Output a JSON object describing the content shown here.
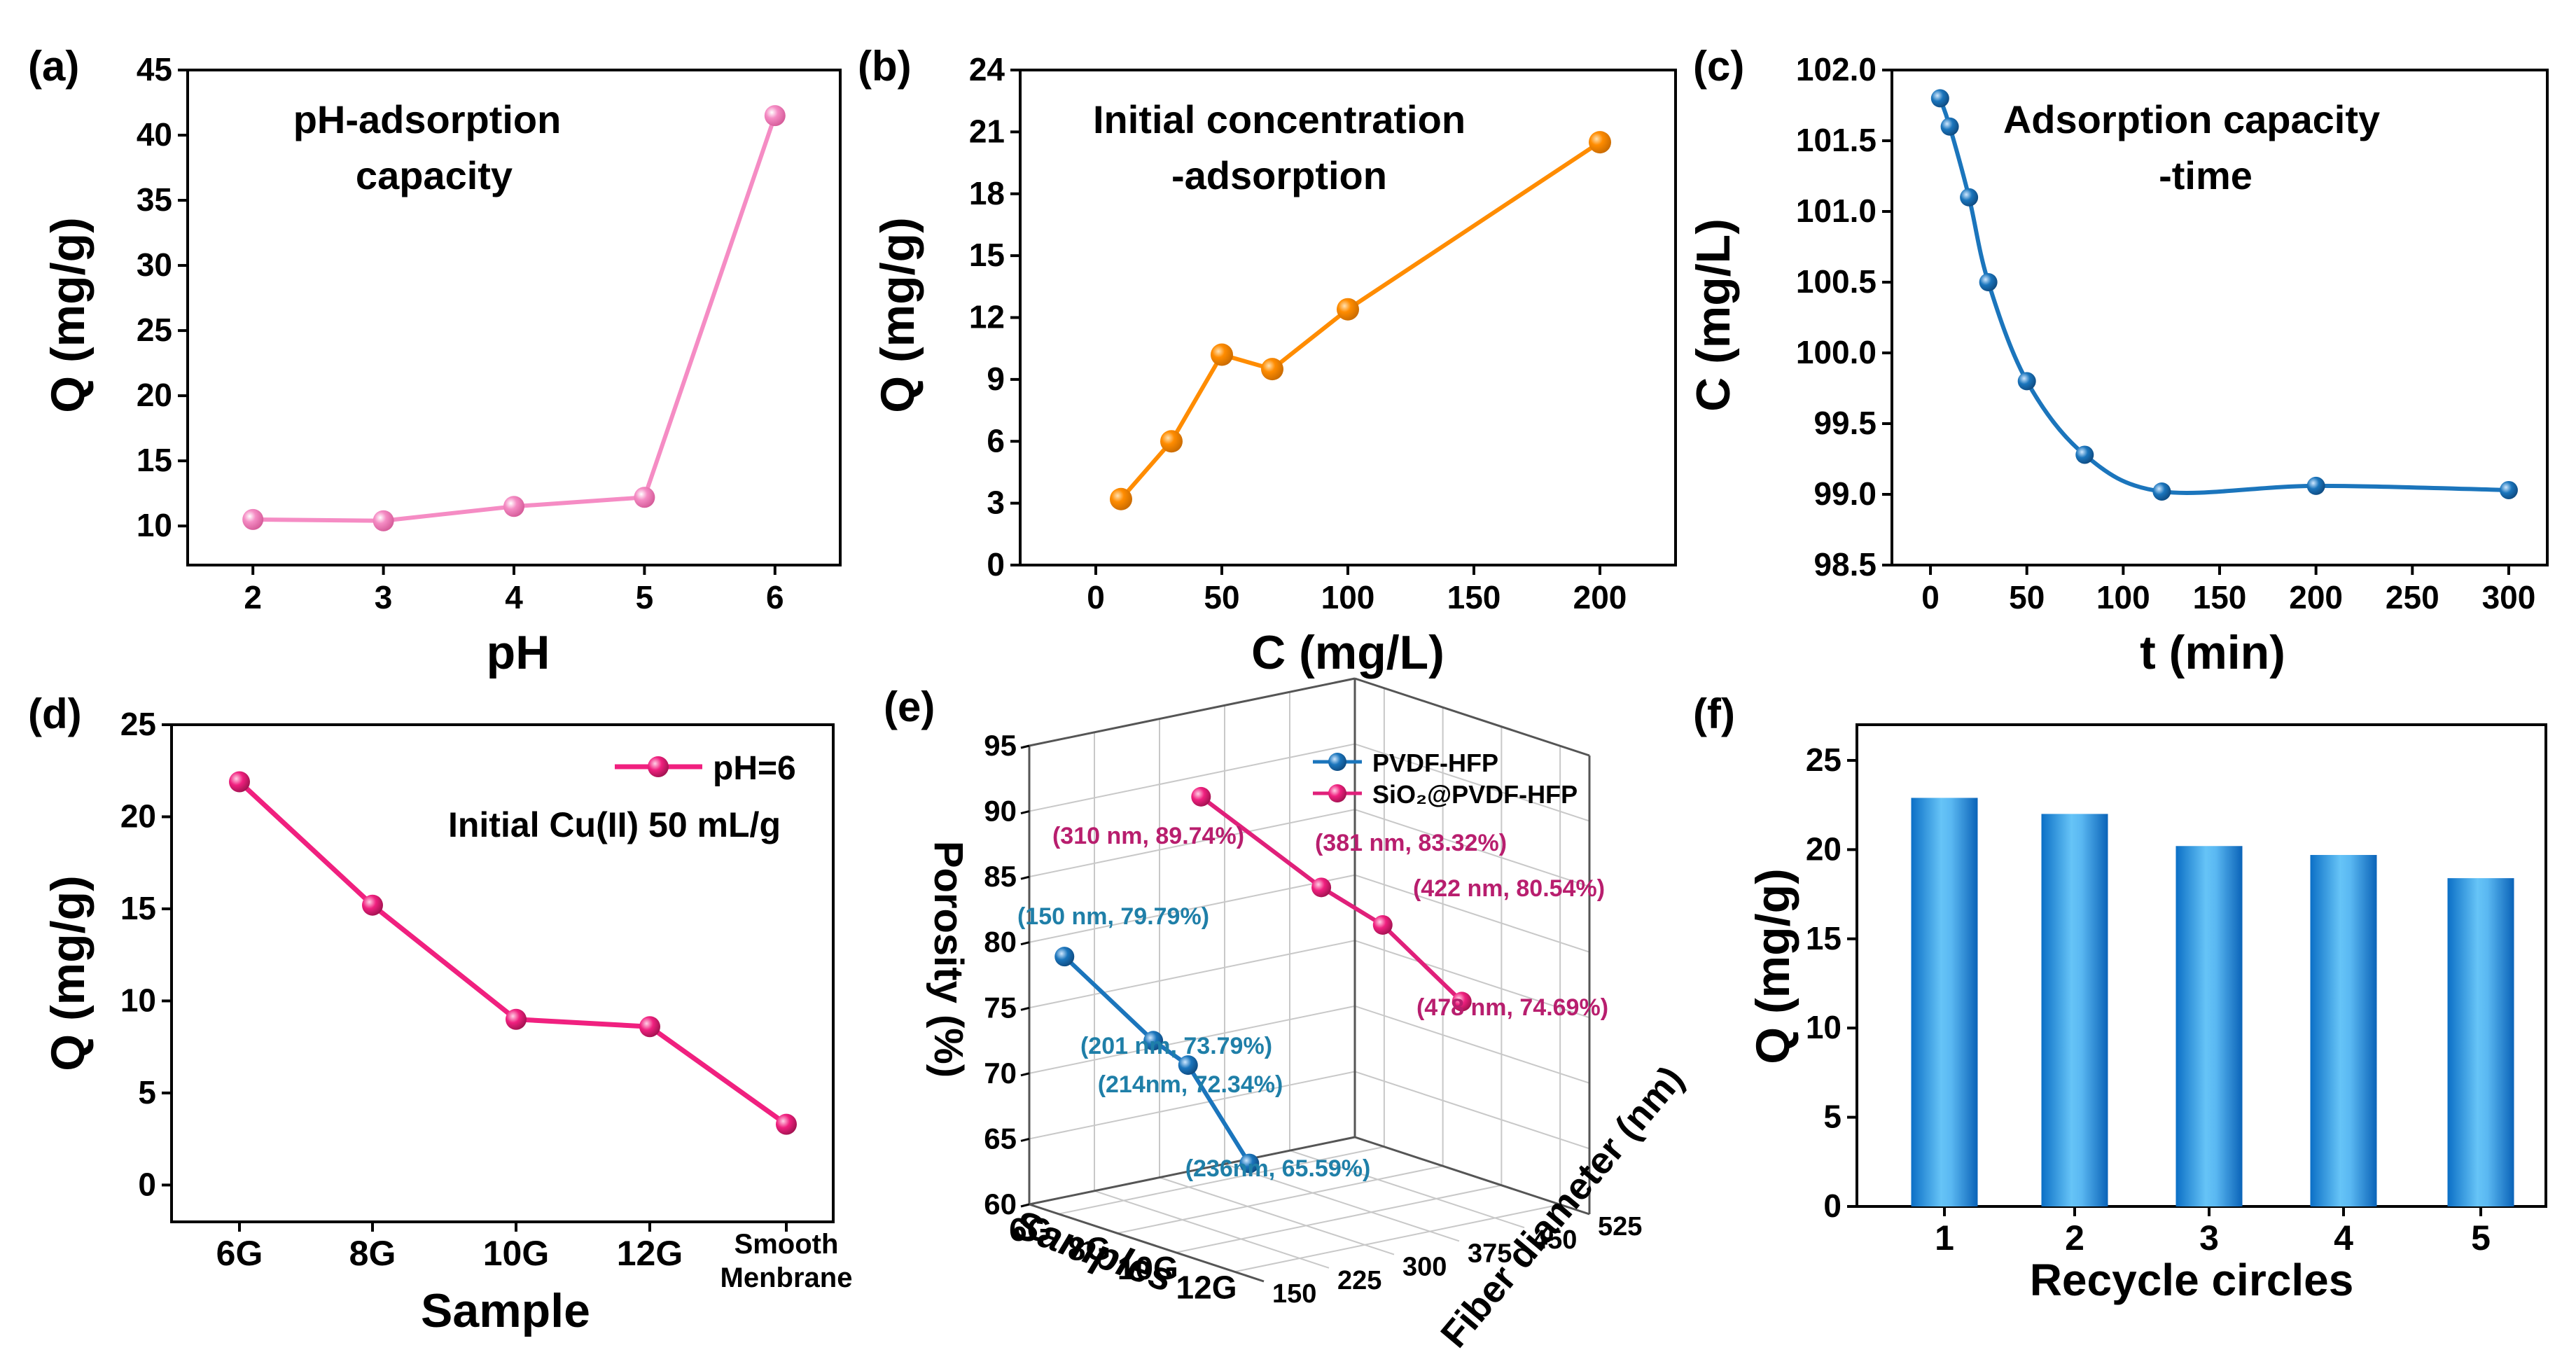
{
  "chart_data": [
    {
      "id": "a",
      "panel_label": "(a)",
      "type": "line",
      "annotation": [
        "pH-adsorption",
        "capacity"
      ],
      "xlabel": "pH",
      "ylabel": "Q (mg/g)",
      "xlim": [
        1.5,
        6.5
      ],
      "ylim": [
        7,
        45
      ],
      "xticks": [
        2,
        3,
        4,
        5,
        6
      ],
      "yticks": [
        10,
        15,
        20,
        25,
        30,
        35,
        40,
        45
      ],
      "x": [
        2,
        3,
        4,
        5,
        6
      ],
      "y": [
        10.5,
        10.4,
        11.5,
        12.2,
        41.5
      ],
      "color": "#f58cc4"
    },
    {
      "id": "b",
      "panel_label": "(b)",
      "type": "line",
      "annotation": [
        "Initial concentration",
        "-adsorption"
      ],
      "xlabel": "C (mg/L)",
      "ylabel": "Q (mg/g)",
      "xlim": [
        -30,
        230
      ],
      "ylim": [
        0,
        24
      ],
      "xticks": [
        0,
        50,
        100,
        150,
        200
      ],
      "yticks": [
        0,
        3,
        6,
        9,
        12,
        15,
        18,
        21,
        24
      ],
      "x": [
        10,
        30,
        50,
        70,
        100,
        200
      ],
      "y": [
        3.2,
        6.0,
        10.2,
        9.5,
        12.4,
        20.5
      ],
      "color": "#ff8c00"
    },
    {
      "id": "c",
      "panel_label": "(c)",
      "type": "line",
      "annotation": [
        "Adsorption capacity",
        "-time"
      ],
      "xlabel": "t (min)",
      "ylabel": "C (mg/L)",
      "xlim": [
        -20,
        320
      ],
      "ylim": [
        98.5,
        102.0
      ],
      "xticks": [
        0,
        50,
        100,
        150,
        200,
        250,
        300
      ],
      "yticks": [
        "98.5",
        "99.0",
        "99.5",
        "100.0",
        "100.5",
        "101.0",
        "101.5",
        "102.0"
      ],
      "x": [
        5,
        10,
        20,
        30,
        50,
        80,
        120,
        200,
        300
      ],
      "y": [
        101.8,
        101.6,
        101.1,
        100.5,
        99.8,
        99.28,
        99.02,
        99.06,
        99.03
      ],
      "color": "#1b75bc"
    },
    {
      "id": "d",
      "panel_label": "(d)",
      "type": "line",
      "legend": "pH=6",
      "annotation": [
        "Initial Cu(II) 50 mL/g"
      ],
      "xlabel": "Sample",
      "ylabel": "Q (mg/g)",
      "ylim": [
        -2,
        25
      ],
      "yticks": [
        0,
        5,
        10,
        15,
        20,
        25
      ],
      "categories": [
        "6G",
        "8G",
        "10G",
        "12G",
        "Smooth\nMenbrane"
      ],
      "values": [
        21.9,
        15.2,
        9.0,
        8.6,
        3.3
      ],
      "color": "#f0207f"
    },
    {
      "id": "e",
      "panel_label": "(e)",
      "type": "scatter3d",
      "xlabel": "Samples",
      "ylabel": "Fiber diameter (nm)",
      "zlabel": "Porosity (%)",
      "xticks": [
        "6G",
        "8G",
        "10G",
        "12G"
      ],
      "yticks": [
        150,
        225,
        300,
        375,
        450,
        525
      ],
      "zticks": [
        60,
        65,
        70,
        75,
        80,
        85,
        90,
        95
      ],
      "series": [
        {
          "name": "PVDF-HFP",
          "color": "#1b75bc",
          "diameter": [
            150,
            201,
            214,
            236
          ],
          "porosity": [
            79.79,
            73.79,
            72.34,
            65.59
          ],
          "labels": [
            "(150 nm, 79.79%)",
            "(201 nm, 73.79%)",
            "(214nm, 72.34%)",
            "(236nm, 65.59%)"
          ]
        },
        {
          "name": "SiO₂@PVDF-HFP",
          "color": "#e0207a",
          "diameter": [
            310,
            381,
            422,
            478
          ],
          "porosity": [
            89.74,
            83.32,
            80.54,
            74.69
          ],
          "labels": [
            "(310 nm, 89.74%)",
            "(381 nm, 83.32%)",
            "(422 nm, 80.54%)",
            "(478 nm, 74.69%)"
          ]
        }
      ]
    },
    {
      "id": "f",
      "panel_label": "(f)",
      "type": "bar",
      "xlabel": "Recycle circles",
      "ylabel": "Q (mg/g)",
      "ylim": [
        0,
        27
      ],
      "yticks": [
        0,
        5,
        10,
        15,
        20,
        25
      ],
      "categories": [
        "1",
        "2",
        "3",
        "4",
        "5"
      ],
      "values": [
        22.9,
        22.0,
        20.2,
        19.7,
        18.4
      ],
      "color": "#1e8fe0"
    }
  ]
}
